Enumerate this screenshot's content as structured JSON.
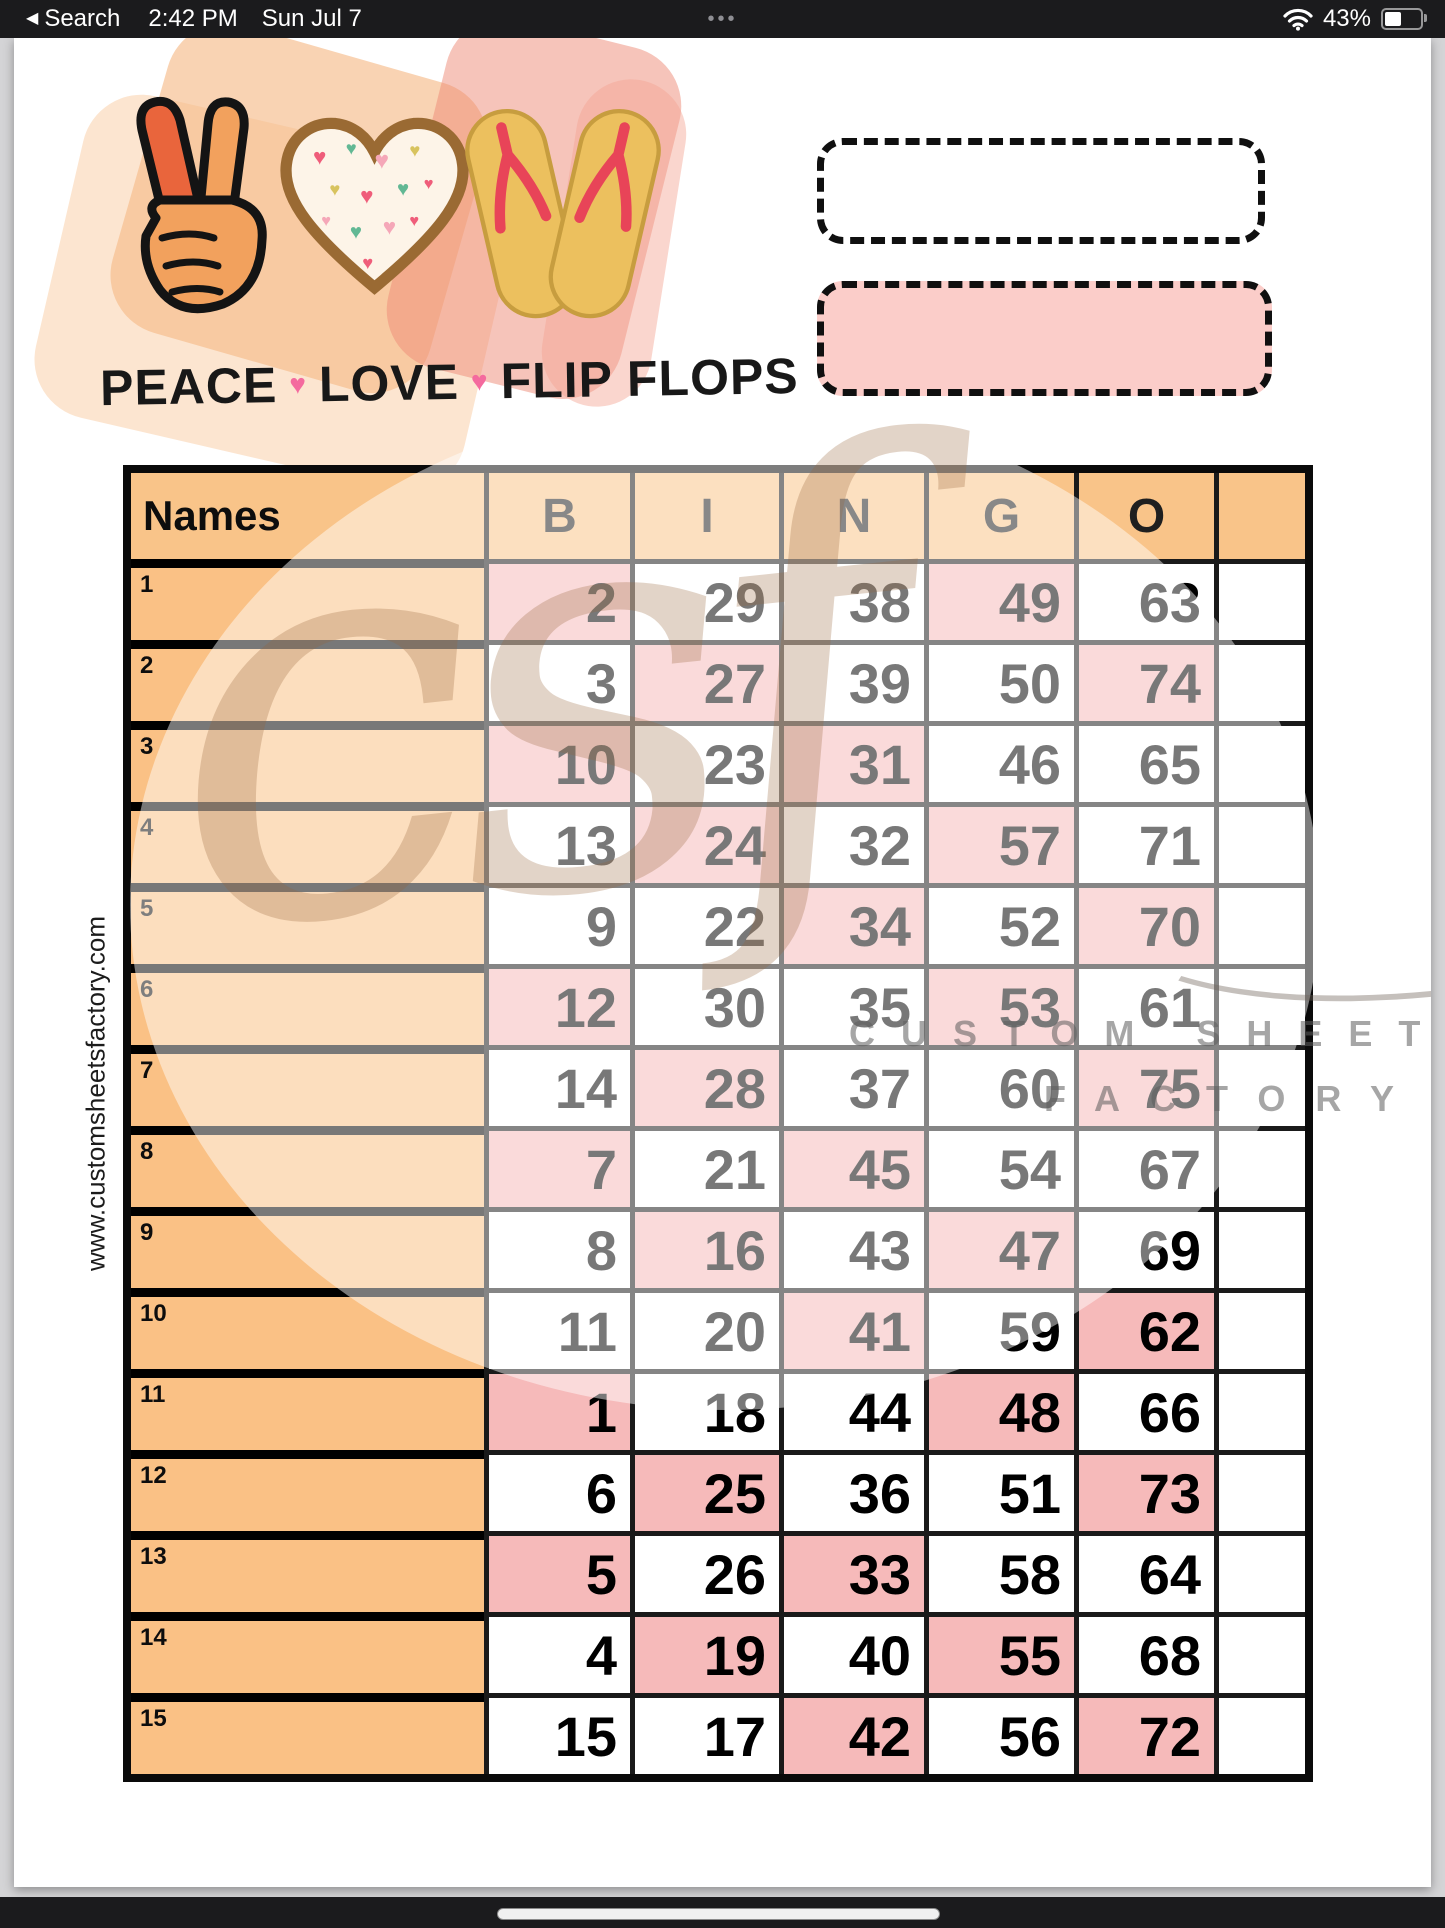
{
  "status_bar": {
    "back_label": "Search",
    "back_glyph": "◀",
    "time": "2:42 PM",
    "date": "Sun Jul 7",
    "center_dots": "•••",
    "battery_percent": "43%"
  },
  "header": {
    "slogan": {
      "w1": "PEACE",
      "w2": "LOVE",
      "w3": "FLIP FLOPS",
      "heart": "♥"
    },
    "icons": [
      "peace-hand",
      "patterned-heart",
      "flip-flops"
    ]
  },
  "side_url": "www.customsheetsfactory.com",
  "watermark": {
    "monogram": "csf",
    "line1": "CUSTOM SHEETS",
    "line2": "FACTORY"
  },
  "colors": {
    "names_fill": "#fac185",
    "header_fill": "#f9c489",
    "pink_cell": "#f6baba",
    "pink_box": "#fbcdc9",
    "heart_accent": "#f46a9e"
  },
  "table": {
    "header": {
      "names": "Names",
      "cols": [
        "B",
        "I",
        "N",
        "G",
        "O"
      ],
      "extra": ""
    },
    "rows": [
      {
        "label": "1",
        "cells": [
          {
            "col": "B",
            "v": "2",
            "pink": true
          },
          {
            "col": "I",
            "v": "29",
            "pink": false
          },
          {
            "col": "N",
            "v": "38",
            "pink": false
          },
          {
            "col": "G",
            "v": "49",
            "pink": true
          },
          {
            "col": "O",
            "v": "63",
            "pink": false
          }
        ]
      },
      {
        "label": "2",
        "cells": [
          {
            "col": "B",
            "v": "3",
            "pink": false
          },
          {
            "col": "I",
            "v": "27",
            "pink": true
          },
          {
            "col": "N",
            "v": "39",
            "pink": false
          },
          {
            "col": "G",
            "v": "50",
            "pink": false
          },
          {
            "col": "O",
            "v": "74",
            "pink": true
          }
        ]
      },
      {
        "label": "3",
        "cells": [
          {
            "col": "B",
            "v": "10",
            "pink": true
          },
          {
            "col": "I",
            "v": "23",
            "pink": false
          },
          {
            "col": "N",
            "v": "31",
            "pink": true
          },
          {
            "col": "G",
            "v": "46",
            "pink": false
          },
          {
            "col": "O",
            "v": "65",
            "pink": false
          }
        ]
      },
      {
        "label": "4",
        "cells": [
          {
            "col": "B",
            "v": "13",
            "pink": false
          },
          {
            "col": "I",
            "v": "24",
            "pink": true
          },
          {
            "col": "N",
            "v": "32",
            "pink": false
          },
          {
            "col": "G",
            "v": "57",
            "pink": true
          },
          {
            "col": "O",
            "v": "71",
            "pink": false
          }
        ]
      },
      {
        "label": "5",
        "cells": [
          {
            "col": "B",
            "v": "9",
            "pink": false
          },
          {
            "col": "I",
            "v": "22",
            "pink": false
          },
          {
            "col": "N",
            "v": "34",
            "pink": true
          },
          {
            "col": "G",
            "v": "52",
            "pink": false
          },
          {
            "col": "O",
            "v": "70",
            "pink": true
          }
        ]
      },
      {
        "label": "6",
        "cells": [
          {
            "col": "B",
            "v": "12",
            "pink": true
          },
          {
            "col": "I",
            "v": "30",
            "pink": false
          },
          {
            "col": "N",
            "v": "35",
            "pink": false
          },
          {
            "col": "G",
            "v": "53",
            "pink": true
          },
          {
            "col": "O",
            "v": "61",
            "pink": false
          }
        ]
      },
      {
        "label": "7",
        "cells": [
          {
            "col": "B",
            "v": "14",
            "pink": false
          },
          {
            "col": "I",
            "v": "28",
            "pink": true
          },
          {
            "col": "N",
            "v": "37",
            "pink": false
          },
          {
            "col": "G",
            "v": "60",
            "pink": false
          },
          {
            "col": "O",
            "v": "75",
            "pink": true
          }
        ]
      },
      {
        "label": "8",
        "cells": [
          {
            "col": "B",
            "v": "7",
            "pink": true
          },
          {
            "col": "I",
            "v": "21",
            "pink": false
          },
          {
            "col": "N",
            "v": "45",
            "pink": true
          },
          {
            "col": "G",
            "v": "54",
            "pink": false
          },
          {
            "col": "O",
            "v": "67",
            "pink": false
          }
        ]
      },
      {
        "label": "9",
        "cells": [
          {
            "col": "B",
            "v": "8",
            "pink": false
          },
          {
            "col": "I",
            "v": "16",
            "pink": true
          },
          {
            "col": "N",
            "v": "43",
            "pink": false
          },
          {
            "col": "G",
            "v": "47",
            "pink": true
          },
          {
            "col": "O",
            "v": "69",
            "pink": false
          }
        ]
      },
      {
        "label": "10",
        "cells": [
          {
            "col": "B",
            "v": "11",
            "pink": false
          },
          {
            "col": "I",
            "v": "20",
            "pink": false
          },
          {
            "col": "N",
            "v": "41",
            "pink": true
          },
          {
            "col": "G",
            "v": "59",
            "pink": false
          },
          {
            "col": "O",
            "v": "62",
            "pink": true
          }
        ]
      },
      {
        "label": "11",
        "cells": [
          {
            "col": "B",
            "v": "1",
            "pink": true
          },
          {
            "col": "I",
            "v": "18",
            "pink": false
          },
          {
            "col": "N",
            "v": "44",
            "pink": false
          },
          {
            "col": "G",
            "v": "48",
            "pink": true
          },
          {
            "col": "O",
            "v": "66",
            "pink": false
          }
        ]
      },
      {
        "label": "12",
        "cells": [
          {
            "col": "B",
            "v": "6",
            "pink": false
          },
          {
            "col": "I",
            "v": "25",
            "pink": true
          },
          {
            "col": "N",
            "v": "36",
            "pink": false
          },
          {
            "col": "G",
            "v": "51",
            "pink": false
          },
          {
            "col": "O",
            "v": "73",
            "pink": true
          }
        ]
      },
      {
        "label": "13",
        "cells": [
          {
            "col": "B",
            "v": "5",
            "pink": true
          },
          {
            "col": "I",
            "v": "26",
            "pink": false
          },
          {
            "col": "N",
            "v": "33",
            "pink": true
          },
          {
            "col": "G",
            "v": "58",
            "pink": false
          },
          {
            "col": "O",
            "v": "64",
            "pink": false
          }
        ]
      },
      {
        "label": "14",
        "cells": [
          {
            "col": "B",
            "v": "4",
            "pink": false
          },
          {
            "col": "I",
            "v": "19",
            "pink": true
          },
          {
            "col": "N",
            "v": "40",
            "pink": false
          },
          {
            "col": "G",
            "v": "55",
            "pink": true
          },
          {
            "col": "O",
            "v": "68",
            "pink": false
          }
        ]
      },
      {
        "label": "15",
        "cells": [
          {
            "col": "B",
            "v": "15",
            "pink": false
          },
          {
            "col": "I",
            "v": "17",
            "pink": false
          },
          {
            "col": "N",
            "v": "42",
            "pink": true
          },
          {
            "col": "G",
            "v": "56",
            "pink": false
          },
          {
            "col": "O",
            "v": "72",
            "pink": true
          }
        ]
      }
    ]
  }
}
